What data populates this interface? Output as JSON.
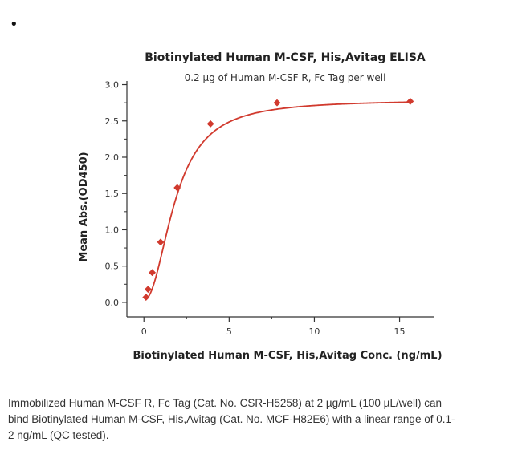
{
  "title": "Biotinylated Human M-CSF, His,Avitag ELISA",
  "subtitle": "0.2 µg of Human M-CSF R, Fc Tag per well",
  "caption": {
    "line1": "Immobilized Human M-CSF R, Fc Tag (Cat. No. CSR-H5258) at 2 µg/mL (100 µL/well) can",
    "line2": "bind Biotinylated Human M-CSF, His,Avitag (Cat. No. MCF-H82E6) with a linear range of 0.1-",
    "line3": "2 ng/mL (QC tested)."
  },
  "colors": {
    "series": "#d13a2e",
    "axis": "#333333"
  },
  "chart_data": {
    "type": "scatter",
    "title": "Biotinylated Human M-CSF, His,Avitag ELISA",
    "subtitle": "0.2 µg of Human M-CSF R, Fc Tag per well",
    "xlabel": "Biotinylated Human M-CSF, His,Avitag Conc. (ng/mL)",
    "ylabel": "Mean Abs.(OD450)",
    "xlim": [
      -1,
      17
    ],
    "ylim": [
      -0.2,
      3.05
    ],
    "xticks": [
      0,
      5,
      10,
      15
    ],
    "xtick_labels": [
      "0",
      "5",
      "10",
      "15"
    ],
    "yticks": [
      0.0,
      0.5,
      1.0,
      1.5,
      2.0,
      2.5,
      3.0
    ],
    "ytick_labels": [
      "0.0",
      "0.5",
      "1.0",
      "1.5",
      "2.0",
      "2.5",
      "3.0"
    ],
    "grid": false,
    "series": [
      {
        "x": [
          0.122,
          0.244,
          0.488,
          0.977,
          1.953,
          3.906,
          7.8125,
          15.625
        ],
        "y": [
          0.07,
          0.18,
          0.41,
          0.83,
          1.58,
          2.46,
          2.75,
          2.77
        ],
        "color": "#d13a2e",
        "marker": "diamond",
        "fit_curve": true
      }
    ]
  }
}
